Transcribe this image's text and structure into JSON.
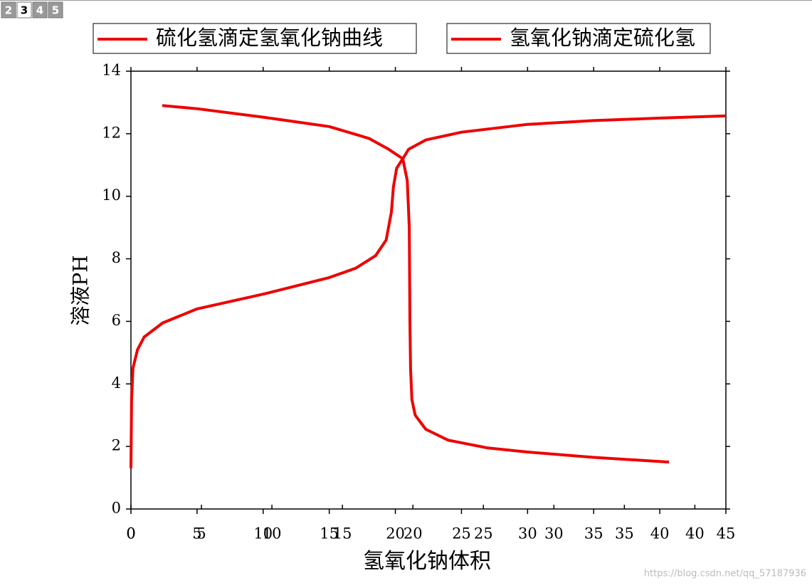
{
  "tabs": [
    "2",
    "3",
    "4",
    "5"
  ],
  "watermark": "https://blog.csdn.net/qq_57187936",
  "chart_data": {
    "type": "line",
    "xlabel": "氢氧化钠体积",
    "ylabel": "溶液PH",
    "xlim": [
      0,
      45
    ],
    "xticks": [
      0,
      5,
      10,
      15,
      20,
      25,
      30,
      35,
      40,
      45
    ],
    "x2lim": [
      0,
      42.2
    ],
    "x2ticks": [
      0,
      5,
      10,
      15,
      20,
      25,
      30,
      35,
      40
    ],
    "ylim": [
      0,
      14
    ],
    "yticks": [
      0,
      2,
      4,
      6,
      8,
      10,
      12,
      14
    ],
    "series": [
      {
        "name": "硫化氢滴定氢氧化钠曲线",
        "color": "#ee0000",
        "x": [
          2.37,
          5,
          10,
          15,
          18,
          19.5,
          20.56,
          20.9,
          21.05,
          21.1,
          21.15,
          21.25,
          21.5,
          22.3,
          24,
          27,
          30,
          35,
          40.7
        ],
        "values": [
          12.9,
          12.8,
          12.53,
          12.23,
          11.85,
          11.5,
          11.2,
          10.5,
          9,
          6,
          4.5,
          3.5,
          3.0,
          2.55,
          2.2,
          1.95,
          1.82,
          1.65,
          1.5
        ]
      },
      {
        "name": "氢氧化钠滴定硫化氢",
        "color": "#ee0000",
        "x": [
          0,
          0.05,
          0.15,
          0.5,
          1,
          2.4,
          5,
          10,
          15,
          17,
          18.5,
          19.3,
          19.7,
          19.85,
          20.1,
          20.56,
          21,
          22.3,
          25,
          30,
          35,
          40,
          45
        ],
        "values": [
          1.3,
          3.5,
          4.5,
          5.1,
          5.5,
          5.95,
          6.4,
          6.87,
          7.4,
          7.7,
          8.1,
          8.6,
          9.5,
          10.3,
          10.9,
          11.2,
          11.5,
          11.8,
          12.05,
          12.3,
          12.42,
          12.5,
          12.57
        ]
      }
    ]
  }
}
